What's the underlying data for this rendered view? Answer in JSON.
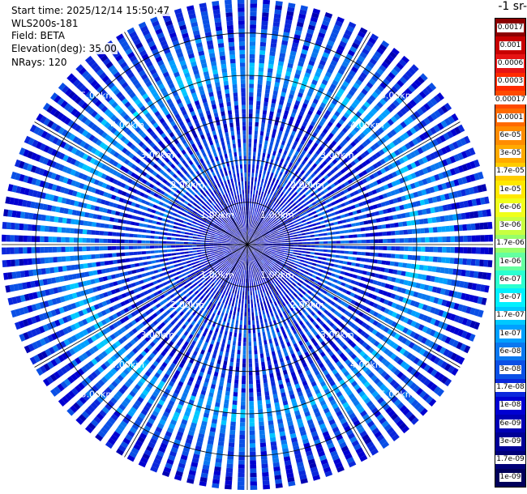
{
  "header": {
    "start_time": "Start time: 2025/12/14 15:50:47",
    "instrument": "WLS200s-181",
    "field": "Field: BETA",
    "elevation": "Elevation(deg): 35.00",
    "nrays": "NRays: 120"
  },
  "colorbar": {
    "unit_label": "-1 sr-",
    "ticks": [
      "0.0017",
      "0.001",
      "0.0006",
      "0.0003",
      "0.00017",
      "0.0001",
      "6e-05",
      "3e-05",
      "1.7e-05",
      "1e-05",
      "6e-06",
      "3e-06",
      "1.7e-06",
      "1e-06",
      "6e-07",
      "3e-07",
      "1.7e-07",
      "1e-07",
      "6e-08",
      "3e-08",
      "1.7e-08",
      "1e-08",
      "6e-09",
      "3e-09",
      "1.7e-09",
      "1e-09"
    ],
    "colors": [
      "#8b0000",
      "#c80000",
      "#e61414",
      "#ff2a00",
      "#ff4a00",
      "#ff6a00",
      "#ff8c00",
      "#ffaa00",
      "#ffcc00",
      "#ffe800",
      "#f0ff1a",
      "#c8ff40",
      "#96ff6a",
      "#64ffa0",
      "#2affd0",
      "#00f0ff",
      "#00c8ff",
      "#00a0ff",
      "#0a78f0",
      "#0a50e6",
      "#0a28dc",
      "#0000d2",
      "#0000b4",
      "#000096",
      "#000078",
      "#00005a"
    ]
  },
  "chart_data": {
    "type": "ppi",
    "title": "",
    "field": "BETA",
    "elevation_deg": 35.0,
    "n_rays": 120,
    "range_rings_km": [
      1,
      2,
      3,
      4,
      5
    ],
    "range_ring_labels": [
      "1.00km",
      "2.00km",
      "3.00km",
      "4.00km",
      "5.00km"
    ],
    "max_range_km": 5.8,
    "radial_profile": [
      {
        "range_km": 0.0,
        "value": 3e-09
      },
      {
        "range_km": 0.5,
        "value": 6e-09
      },
      {
        "range_km": 1.0,
        "value": 1e-08
      },
      {
        "range_km": 1.5,
        "value": 1.7e-08
      },
      {
        "range_km": 2.0,
        "value": 3e-08
      },
      {
        "range_km": 2.5,
        "value": 3e-08
      },
      {
        "range_km": 3.0,
        "value": 1.7e-08
      },
      {
        "range_km": 3.5,
        "value": 3e-08
      },
      {
        "range_km": 4.0,
        "value": 1e-07
      },
      {
        "range_km": 4.5,
        "value": 6e-08
      },
      {
        "range_km": 5.0,
        "value": 3e-08
      },
      {
        "range_km": 5.5,
        "value": 1.7e-08
      }
    ],
    "colorbar_min": 1e-09,
    "colorbar_max": 0.0017,
    "colorbar_scale": "log"
  }
}
